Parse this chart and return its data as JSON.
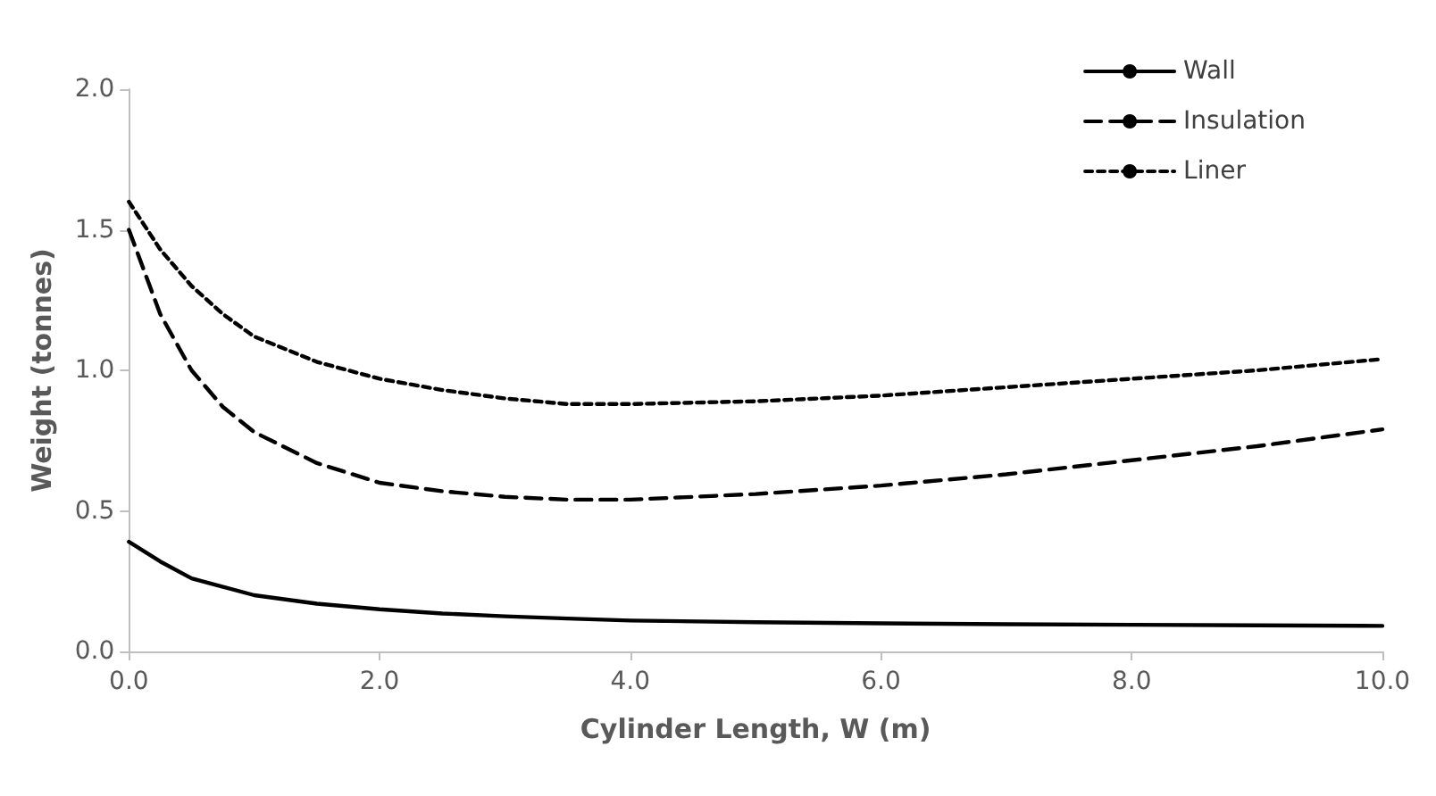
{
  "chart_data": {
    "type": "line",
    "xlabel": "Cylinder Length, W (m)",
    "ylabel": "Weight (tonnes)",
    "xlim": [
      0,
      10
    ],
    "xticks": [
      {
        "value": 0,
        "label": "0.0"
      },
      {
        "value": 2,
        "label": "2.0"
      },
      {
        "value": 4,
        "label": "4.0"
      },
      {
        "value": 6,
        "label": "6.0"
      },
      {
        "value": 8,
        "label": "8.0"
      },
      {
        "value": 10,
        "label": "10.0"
      }
    ],
    "ylim": [
      0,
      2
    ],
    "yticks": [
      {
        "value": 0,
        "label": "0.0"
      },
      {
        "value": 0.5,
        "label": "0.5"
      },
      {
        "value": 1,
        "label": "1.0"
      },
      {
        "value": 1.5,
        "label": "1.5"
      },
      {
        "value": 2,
        "label": "2.0"
      }
    ],
    "x": [
      0,
      0.25,
      0.5,
      0.75,
      1,
      1.5,
      2,
      2.5,
      3,
      3.5,
      4,
      5,
      6,
      7,
      8,
      9,
      10
    ],
    "series": [
      {
        "name": "Wall",
        "color": "#000000",
        "line_style": "solid",
        "values": [
          0.39,
          0.32,
          0.26,
          0.23,
          0.2,
          0.17,
          0.15,
          0.135,
          0.125,
          0.117,
          0.11,
          0.104,
          0.1,
          0.097,
          0.095,
          0.093,
          0.091
        ]
      },
      {
        "name": "Insulation",
        "color": "#000000",
        "line_style": "dashed",
        "values": [
          1.5,
          1.2,
          1.0,
          0.87,
          0.78,
          0.67,
          0.6,
          0.57,
          0.55,
          0.54,
          0.54,
          0.56,
          0.59,
          0.63,
          0.68,
          0.73,
          0.79
        ]
      },
      {
        "name": "Liner",
        "color": "#000000",
        "line_style": "dotted",
        "values": [
          1.6,
          1.43,
          1.3,
          1.2,
          1.12,
          1.03,
          0.97,
          0.93,
          0.9,
          0.88,
          0.88,
          0.89,
          0.91,
          0.94,
          0.97,
          1.0,
          1.04
        ]
      }
    ],
    "legend": "top right",
    "grid": false,
    "marker": "none"
  }
}
